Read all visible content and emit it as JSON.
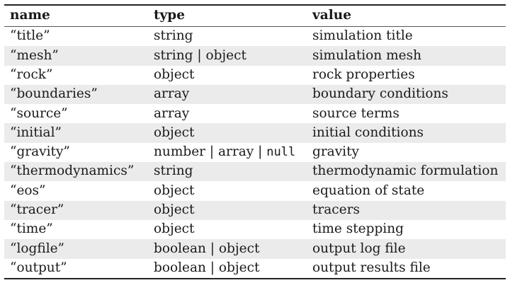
{
  "table": {
    "headers": [
      "name",
      "type",
      "value"
    ],
    "rows": [
      {
        "name": "“title”",
        "type": [
          "string"
        ],
        "value": "simulation title"
      },
      {
        "name": "“mesh”",
        "type": [
          "string | object"
        ],
        "value": "simulation mesh"
      },
      {
        "name": "“rock”",
        "type": [
          "object"
        ],
        "value": "rock properties"
      },
      {
        "name": "“boundaries”",
        "type": [
          "array"
        ],
        "value": "boundary conditions"
      },
      {
        "name": "“source”",
        "type": [
          "array"
        ],
        "value": "source terms"
      },
      {
        "name": "“initial”",
        "type": [
          "object"
        ],
        "value": "initial conditions"
      },
      {
        "name": "“gravity”",
        "type": [
          "number | array | ",
          "null"
        ],
        "value": "gravity"
      },
      {
        "name": "“thermodynamics”",
        "type": [
          "string"
        ],
        "value": "thermodynamic formulation"
      },
      {
        "name": "“eos”",
        "type": [
          "object"
        ],
        "value": "equation of state"
      },
      {
        "name": "“tracer”",
        "type": [
          "object"
        ],
        "value": "tracers"
      },
      {
        "name": "“time”",
        "type": [
          "object"
        ],
        "value": "time stepping"
      },
      {
        "name": "“logfile”",
        "type": [
          "boolean | object"
        ],
        "value": "output log file"
      },
      {
        "name": "“output”",
        "type": [
          "boolean | object"
        ],
        "value": "output results file"
      }
    ]
  }
}
